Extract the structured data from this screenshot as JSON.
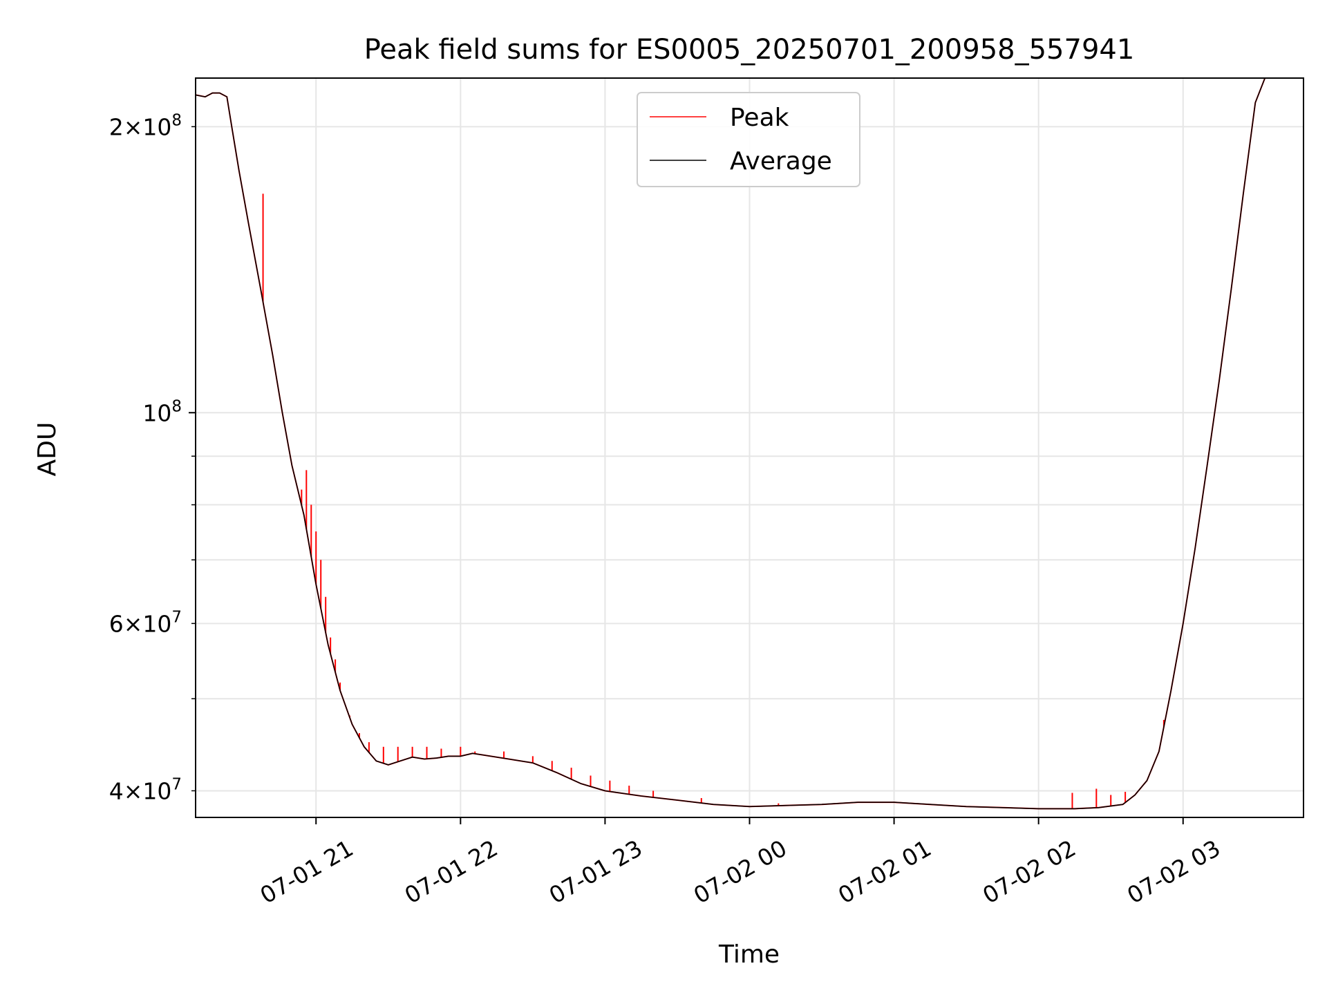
{
  "chart_data": {
    "type": "line",
    "title": "Peak field sums for ES0005_20250701_200958_557941",
    "xlabel": "Time",
    "ylabel": "ADU",
    "x_axis": {
      "type": "time",
      "range": [
        "2025-07-01 20:10",
        "2025-07-02 03:50"
      ],
      "ticks": [
        "2025-07-01 21:00",
        "2025-07-01 22:00",
        "2025-07-01 23:00",
        "2025-07-02 00:00",
        "2025-07-02 01:00",
        "2025-07-02 02:00",
        "2025-07-02 03:00"
      ],
      "tick_labels": [
        "07-01 21",
        "07-01 22",
        "07-01 23",
        "07-02 00",
        "07-02 01",
        "07-02 02",
        "07-02 03"
      ]
    },
    "y_axis": {
      "scale": "log",
      "range": [
        37500000,
        225000000
      ],
      "major_ticks": [
        100000000
      ],
      "major_tick_labels": [
        {
          "base": "10",
          "exp": "8"
        }
      ],
      "minor_ticks": [
        40000000,
        50000000,
        60000000,
        70000000,
        80000000,
        90000000,
        200000000
      ],
      "minor_tick_labels": [
        {
          "value": 40000000,
          "coef": "4",
          "base": "10",
          "exp": "7"
        },
        {
          "value": 60000000,
          "coef": "6",
          "base": "10",
          "exp": "7"
        },
        {
          "value": 200000000,
          "coef": "2",
          "base": "10",
          "exp": "8"
        }
      ]
    },
    "grid": true,
    "legend": {
      "placement": "upper center"
    },
    "series": [
      {
        "name": "Peak",
        "color": "#ff0000",
        "spikes": [
          [
            "2025-07-01 20:38",
            170000000
          ],
          [
            "2025-07-01 20:54",
            83000000
          ],
          [
            "2025-07-01 20:56",
            87000000
          ],
          [
            "2025-07-01 20:58",
            80000000
          ],
          [
            "2025-07-01 21:00",
            75000000
          ],
          [
            "2025-07-01 21:02",
            70000000
          ],
          [
            "2025-07-01 21:04",
            64000000
          ],
          [
            "2025-07-01 21:06",
            58000000
          ],
          [
            "2025-07-01 21:08",
            55000000
          ],
          [
            "2025-07-01 21:10",
            52000000
          ],
          [
            "2025-07-01 21:14",
            48000000
          ],
          [
            "2025-07-01 21:18",
            46000000
          ],
          [
            "2025-07-01 21:22",
            45000000
          ],
          [
            "2025-07-01 21:28",
            44500000
          ],
          [
            "2025-07-01 21:34",
            44500000
          ],
          [
            "2025-07-01 21:40",
            44500000
          ],
          [
            "2025-07-01 21:46",
            44500000
          ],
          [
            "2025-07-01 21:52",
            44300000
          ],
          [
            "2025-07-01 22:00",
            44500000
          ],
          [
            "2025-07-01 22:06",
            44000000
          ],
          [
            "2025-07-01 22:18",
            44000000
          ],
          [
            "2025-07-01 22:30",
            43500000
          ],
          [
            "2025-07-01 22:38",
            43000000
          ],
          [
            "2025-07-01 22:46",
            42300000
          ],
          [
            "2025-07-01 22:54",
            41500000
          ],
          [
            "2025-07-01 23:02",
            41000000
          ],
          [
            "2025-07-01 23:10",
            40500000
          ],
          [
            "2025-07-01 23:20",
            40000000
          ],
          [
            "2025-07-01 23:40",
            39300000
          ],
          [
            "2025-07-02 00:12",
            38800000
          ],
          [
            "2025-07-02 02:14",
            39800000
          ],
          [
            "2025-07-02 02:24",
            40200000
          ],
          [
            "2025-07-02 02:30",
            39600000
          ],
          [
            "2025-07-02 02:36",
            39900000
          ],
          [
            "2025-07-02 02:52",
            47500000
          ],
          [
            "2025-07-02 03:10",
            88000000
          ]
        ]
      },
      {
        "name": "Average",
        "color": "#000000",
        "values": [
          [
            "2025-07-01 20:10",
            216000000
          ],
          [
            "2025-07-01 20:14",
            215000000
          ],
          [
            "2025-07-01 20:17",
            217000000
          ],
          [
            "2025-07-01 20:20",
            217000000
          ],
          [
            "2025-07-01 20:23",
            215000000
          ],
          [
            "2025-07-01 20:25",
            200000000
          ],
          [
            "2025-07-01 20:28",
            180000000
          ],
          [
            "2025-07-01 20:32",
            158000000
          ],
          [
            "2025-07-01 20:37",
            135000000
          ],
          [
            "2025-07-01 20:42",
            115000000
          ],
          [
            "2025-07-01 20:46",
            100000000
          ],
          [
            "2025-07-01 20:50",
            88000000
          ],
          [
            "2025-07-01 20:55",
            78000000
          ],
          [
            "2025-07-01 21:00",
            66000000
          ],
          [
            "2025-07-01 21:05",
            57000000
          ],
          [
            "2025-07-01 21:10",
            51000000
          ],
          [
            "2025-07-01 21:15",
            47000000
          ],
          [
            "2025-07-01 21:20",
            44500000
          ],
          [
            "2025-07-01 21:25",
            43000000
          ],
          [
            "2025-07-01 21:30",
            42600000
          ],
          [
            "2025-07-01 21:35",
            43000000
          ],
          [
            "2025-07-01 21:40",
            43400000
          ],
          [
            "2025-07-01 21:45",
            43200000
          ],
          [
            "2025-07-01 21:50",
            43300000
          ],
          [
            "2025-07-01 21:55",
            43500000
          ],
          [
            "2025-07-01 22:00",
            43500000
          ],
          [
            "2025-07-01 22:05",
            43800000
          ],
          [
            "2025-07-01 22:10",
            43600000
          ],
          [
            "2025-07-01 22:20",
            43200000
          ],
          [
            "2025-07-01 22:30",
            42800000
          ],
          [
            "2025-07-01 22:40",
            41800000
          ],
          [
            "2025-07-01 22:50",
            40700000
          ],
          [
            "2025-07-01 23:00",
            40000000
          ],
          [
            "2025-07-01 23:15",
            39500000
          ],
          [
            "2025-07-01 23:30",
            39100000
          ],
          [
            "2025-07-01 23:45",
            38700000
          ],
          [
            "2025-07-02 00:00",
            38500000
          ],
          [
            "2025-07-02 00:15",
            38600000
          ],
          [
            "2025-07-02 00:30",
            38700000
          ],
          [
            "2025-07-02 00:45",
            38900000
          ],
          [
            "2025-07-02 01:00",
            38900000
          ],
          [
            "2025-07-02 01:15",
            38700000
          ],
          [
            "2025-07-02 01:30",
            38500000
          ],
          [
            "2025-07-02 01:45",
            38400000
          ],
          [
            "2025-07-02 02:00",
            38300000
          ],
          [
            "2025-07-02 02:15",
            38300000
          ],
          [
            "2025-07-02 02:25",
            38400000
          ],
          [
            "2025-07-02 02:35",
            38700000
          ],
          [
            "2025-07-02 02:40",
            39600000
          ],
          [
            "2025-07-02 02:45",
            41000000
          ],
          [
            "2025-07-02 02:50",
            44000000
          ],
          [
            "2025-07-02 02:55",
            51000000
          ],
          [
            "2025-07-02 03:00",
            60000000
          ],
          [
            "2025-07-02 03:05",
            72000000
          ],
          [
            "2025-07-02 03:10",
            88000000
          ],
          [
            "2025-07-02 03:15",
            108000000
          ],
          [
            "2025-07-02 03:20",
            135000000
          ],
          [
            "2025-07-02 03:25",
            170000000
          ],
          [
            "2025-07-02 03:30",
            212000000
          ],
          [
            "2025-07-02 03:34",
            225000000
          ],
          [
            "2025-07-02 03:50",
            225000000
          ]
        ]
      }
    ]
  }
}
